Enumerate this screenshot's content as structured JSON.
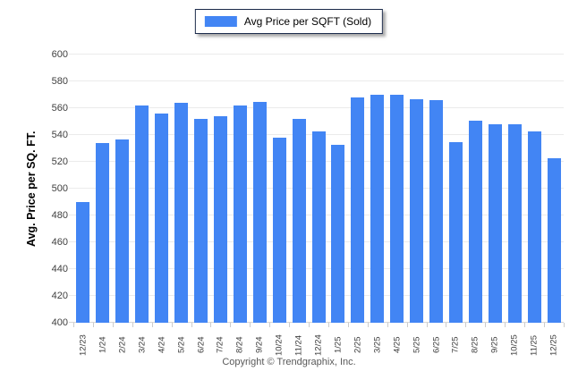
{
  "legend": {
    "label": "Avg Price per SQFT (Sold)",
    "swatch_color": "#4285F4"
  },
  "chart_data": {
    "type": "bar",
    "title": "",
    "xlabel": "",
    "ylabel": "Avg. Price per SQ. FT.",
    "ylim": [
      400,
      600
    ],
    "ytick_step": 20,
    "yticks": [
      400,
      420,
      440,
      460,
      480,
      500,
      520,
      540,
      560,
      580,
      600
    ],
    "grid": true,
    "legend_position": "top-center",
    "categories": [
      "12/23",
      "1/24",
      "2/24",
      "3/24",
      "4/24",
      "5/24",
      "6/24",
      "7/24",
      "8/24",
      "9/24",
      "10/24",
      "11/24",
      "12/24",
      "1/25",
      "2/25",
      "3/25",
      "4/25",
      "5/25",
      "6/25",
      "7/25",
      "8/25",
      "9/25",
      "10/25",
      "11/25",
      "12/25"
    ],
    "series": [
      {
        "name": "Avg Price per SQFT (Sold)",
        "values": [
          490,
          534,
          537,
          562,
          556,
          564,
          552,
          554,
          562,
          565,
          538,
          552,
          543,
          533,
          568,
          570,
          570,
          567,
          566,
          535,
          551,
          548,
          548,
          543,
          523
        ]
      }
    ]
  },
  "colors": {
    "bar": "#4285F4",
    "gridline": "#ebebeb",
    "axis_line": "#d6d6d6",
    "tick_text": "#404040",
    "legend_border": "#1b2a4a"
  },
  "footer": {
    "copyright": "Copyright © Trendgraphix, Inc."
  }
}
